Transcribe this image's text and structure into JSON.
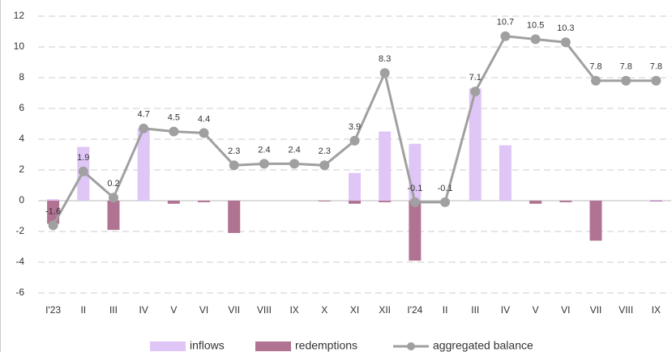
{
  "chart_data": {
    "type": "bar-line",
    "categories": [
      "I'23",
      "II",
      "III",
      "IV",
      "V",
      "VI",
      "VII",
      "VIII",
      "IX",
      "X",
      "XI",
      "XII",
      "I'24",
      "II",
      "III",
      "IV",
      "V",
      "VI",
      "VII",
      "VIII",
      "IX"
    ],
    "series": [
      {
        "name": "inflows",
        "type": "bar",
        "color": "#dfc6f7",
        "values": [
          0.1,
          3.5,
          0,
          4.7,
          0,
          0,
          0,
          0,
          0,
          0,
          1.8,
          4.5,
          3.7,
          0,
          7.3,
          3.6,
          0,
          0,
          0,
          0,
          0.05
        ]
      },
      {
        "name": "redemptions",
        "type": "bar",
        "color": "#b07392",
        "values": [
          -1.5,
          0,
          -1.9,
          0,
          -0.2,
          -0.1,
          -2.1,
          0,
          0,
          -0.05,
          -0.2,
          -0.1,
          -3.9,
          0,
          0,
          0,
          -0.2,
          -0.1,
          -2.6,
          0,
          -0.05
        ]
      },
      {
        "name": "aggregated balance",
        "type": "line",
        "color": "#a0a0a0",
        "values": [
          -1.6,
          1.9,
          0.2,
          4.7,
          4.5,
          4.4,
          2.3,
          2.4,
          2.4,
          2.3,
          3.9,
          8.3,
          -0.1,
          -0.1,
          7.1,
          10.7,
          10.5,
          10.3,
          7.8,
          7.8,
          7.8
        ]
      }
    ],
    "ylim": [
      -6,
      12
    ],
    "yticks": [
      -6,
      -4,
      -2,
      0,
      2,
      4,
      6,
      8,
      10,
      12
    ],
    "grid": true,
    "legend": "bottom"
  }
}
